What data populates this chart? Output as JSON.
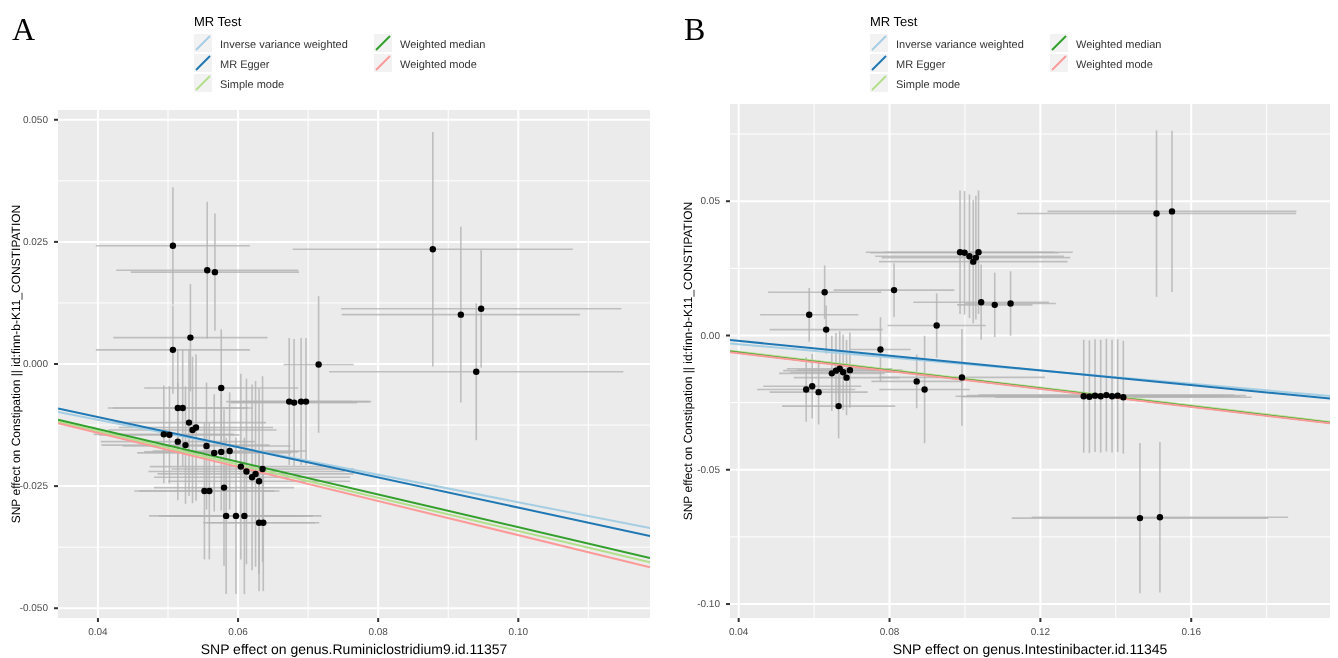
{
  "chart_data": [
    {
      "type": "scatter",
      "title": "A",
      "xlabel": "SNP effect on genus.Ruminiclostridium9.id.11357",
      "ylabel": "SNP effect on Constipation || id:finn-b-K11_CONSTIPATION",
      "legend_title": "MR Test",
      "legend": "top",
      "grid": true,
      "xlim": [
        0.0343,
        0.1188
      ],
      "xticks": [
        0.04,
        0.06,
        0.08,
        {
          "value": 0.1,
          "label": "0.10"
        }
      ],
      "ylim": [
        -0.052,
        0.052
      ],
      "yticks": [
        {
          "value": -0.05,
          "label": "-0.050"
        },
        -0.025,
        {
          "value": 0,
          "label": "0.000"
        },
        0.025,
        {
          "value": 0.05,
          "label": "0.050"
        }
      ],
      "series": [
        {
          "type": "line",
          "name": "Simple mode",
          "color": "#b2df8a",
          "x": [
            0.0343,
            0.1188
          ],
          "values": [
            -0.0118,
            -0.0406
          ]
        },
        {
          "type": "line",
          "name": "Inverse variance weighted",
          "color": "#a6cee3",
          "x": [
            0.0343,
            0.1188
          ],
          "values": [
            -0.0098,
            -0.0336
          ]
        },
        {
          "type": "line",
          "name": "MR Egger",
          "color": "#1f78b4",
          "x": [
            0.0343,
            0.1188
          ],
          "values": [
            -0.0091,
            -0.0352
          ]
        },
        {
          "type": "line",
          "name": "Weighted median",
          "color": "#33a02c",
          "x": [
            0.0343,
            0.1188
          ],
          "values": [
            -0.0114,
            -0.0397
          ]
        },
        {
          "type": "line",
          "name": "Weighted mode",
          "color": "#fb9a99",
          "x": [
            0.0343,
            0.1188
          ],
          "values": [
            -0.0121,
            -0.0416
          ]
        },
        {
          "type": "scatter",
          "marker": "circle",
          "color": "#000000",
          "x": [
            0.0507,
            0.0556,
            0.0567,
            0.0532,
            0.0507,
            0.0576,
            0.0715,
            0.0878,
            0.0918,
            0.0947,
            0.094,
            0.0673,
            0.068,
            0.069,
            0.0697,
            0.0514,
            0.0521,
            0.053,
            0.054,
            0.0535,
            0.0494,
            0.0502,
            0.0514,
            0.0525,
            0.0555,
            0.0566,
            0.0576,
            0.0588,
            0.0552,
            0.0559,
            0.058,
            0.0583,
            0.0597,
            0.0609,
            0.0604,
            0.0612,
            0.062,
            0.0625,
            0.063,
            0.0635,
            0.063,
            0.0636
          ],
          "values": [
            0.0242,
            0.0192,
            0.0188,
            0.0054,
            0.0029,
            -0.0049,
            -0.0001,
            0.0235,
            0.0101,
            0.0113,
            -0.0016,
            -0.0077,
            -0.0079,
            -0.0077,
            -0.0077,
            -0.009,
            -0.009,
            -0.012,
            -0.013,
            -0.0135,
            -0.0144,
            -0.0145,
            -0.0159,
            -0.0166,
            -0.0168,
            -0.0182,
            -0.018,
            -0.0178,
            -0.026,
            -0.026,
            -0.0253,
            -0.0311,
            -0.0311,
            -0.0311,
            -0.021,
            -0.022,
            -0.0232,
            -0.0225,
            -0.024,
            -0.0215,
            -0.0325,
            -0.0325
          ],
          "xerrors": [
            0.011,
            0.013,
            0.012,
            0.011,
            0.011,
            0.011,
            0.005,
            0.02,
            0.017,
            0.02,
            0.021,
            0.009,
            0.009,
            0.01,
            0.009,
            0.01,
            0.01,
            0.011,
            0.011,
            0.012,
            0.01,
            0.01,
            0.011,
            0.012,
            0.012,
            0.011,
            0.011,
            0.011,
            0.01,
            0.01,
            0.01,
            0.011,
            0.011,
            0.011,
            0.013,
            0.014,
            0.014,
            0.014,
            0.013,
            0.013,
            0.008,
            0.008
          ],
          "errors": [
            0.012,
            0.014,
            0.012,
            0.011,
            0.009,
            0.012,
            0.014,
            0.024,
            0.018,
            0.012,
            0.014,
            0.013,
            0.013,
            0.013,
            0.013,
            0.012,
            0.012,
            0.015,
            0.015,
            0.015,
            0.01,
            0.01,
            0.012,
            0.012,
            0.013,
            0.012,
            0.012,
            0.012,
            0.014,
            0.014,
            0.016,
            0.016,
            0.016,
            0.016,
            0.019,
            0.019,
            0.019,
            0.019,
            0.019,
            0.019,
            0.014,
            0.014
          ]
        }
      ]
    },
    {
      "type": "scatter",
      "title": "B",
      "xlabel": "SNP effect on genus.Intestinibacter.id.11345",
      "ylabel": "SNP effect on Constipation || id:finn-b-K11_CONSTIPATION",
      "legend_title": "MR Test",
      "legend": "top",
      "grid": true,
      "xlim": [
        0.0377,
        0.1968
      ],
      "xticks": [
        0.04,
        0.08,
        0.12,
        0.16
      ],
      "ylim": [
        -0.1052,
        0.0862
      ],
      "yticks": [
        {
          "value": -0.1,
          "label": "-0.10"
        },
        -0.05,
        {
          "value": 0,
          "label": "0.00"
        },
        0.05
      ],
      "series": [
        {
          "type": "line",
          "name": "Simple mode",
          "color": "#b2df8a",
          "x": [
            0.0377,
            0.1968
          ],
          "values": [
            -0.0057,
            -0.0322
          ]
        },
        {
          "type": "line",
          "name": "Inverse variance weighted",
          "color": "#a6cee3",
          "x": [
            0.0377,
            0.1968
          ],
          "values": [
            -0.003,
            -0.0225
          ]
        },
        {
          "type": "line",
          "name": "MR Egger",
          "color": "#1f78b4",
          "x": [
            0.0377,
            0.1968
          ],
          "values": [
            -0.0017,
            -0.0235
          ]
        },
        {
          "type": "line",
          "name": "Weighted median",
          "color": "#33a02c",
          "x": [
            0.0377,
            0.1968
          ],
          "values": [
            -0.006,
            -0.0325
          ]
        },
        {
          "type": "line",
          "name": "Weighted mode",
          "color": "#fb9a99",
          "x": [
            0.0377,
            0.1968
          ],
          "values": [
            -0.0062,
            -0.0327
          ]
        },
        {
          "type": "scatter",
          "marker": "circle",
          "color": "#000000",
          "x": [
            0.1508,
            0.1549,
            0.0987,
            0.0999,
            0.1012,
            0.1022,
            0.1029,
            0.1036,
            0.1043,
            0.1079,
            0.1121,
            0.0812,
            0.0628,
            0.0587,
            0.0632,
            0.0925,
            0.0776,
            0.0992,
            0.0872,
            0.0893,
            0.0579,
            0.0595,
            0.0612,
            0.0665,
            0.0647,
            0.0658,
            0.0668,
            0.0677,
            0.0686,
            0.0695,
            0.1315,
            0.133,
            0.1345,
            0.136,
            0.1375,
            0.139,
            0.1405,
            0.142,
            0.1464,
            0.1517
          ],
          "values": [
            0.0454,
            0.0462,
            0.031,
            0.0308,
            0.0295,
            0.0275,
            0.029,
            0.031,
            0.0124,
            0.0114,
            0.0119,
            0.0169,
            0.0161,
            0.0077,
            0.0022,
            0.0037,
            -0.0052,
            -0.0156,
            -0.0171,
            -0.0201,
            -0.0201,
            -0.0189,
            -0.0211,
            -0.0263,
            -0.0141,
            -0.0131,
            -0.0124,
            -0.0137,
            -0.0157,
            -0.0129,
            -0.0226,
            -0.0228,
            -0.0224,
            -0.0226,
            -0.0222,
            -0.0226,
            -0.0224,
            -0.023,
            -0.068,
            -0.0677
          ],
          "xerrors": [
            0.037,
            0.033,
            0.025,
            0.025,
            0.025,
            0.025,
            0.025,
            0.025,
            0.018,
            0.01,
            0.012,
            0.016,
            0.015,
            0.013,
            0.015,
            0.013,
            0.008,
            0.022,
            0.012,
            0.012,
            0.013,
            0.013,
            0.013,
            0.015,
            0.014,
            0.014,
            0.014,
            0.014,
            0.014,
            0.014,
            0.034,
            0.034,
            0.034,
            0.034,
            0.034,
            0.034,
            0.034,
            0.034,
            0.034,
            0.034
          ],
          "errors": [
            0.031,
            0.03,
            0.023,
            0.023,
            0.023,
            0.023,
            0.023,
            0.023,
            0.014,
            0.012,
            0.012,
            0.01,
            0.01,
            0.01,
            0.009,
            0.012,
            0.012,
            0.018,
            0.01,
            0.02,
            0.012,
            0.012,
            0.012,
            0.012,
            0.014,
            0.014,
            0.014,
            0.014,
            0.014,
            0.014,
            0.021,
            0.021,
            0.021,
            0.021,
            0.021,
            0.021,
            0.021,
            0.021,
            0.028,
            0.028
          ]
        }
      ]
    }
  ]
}
